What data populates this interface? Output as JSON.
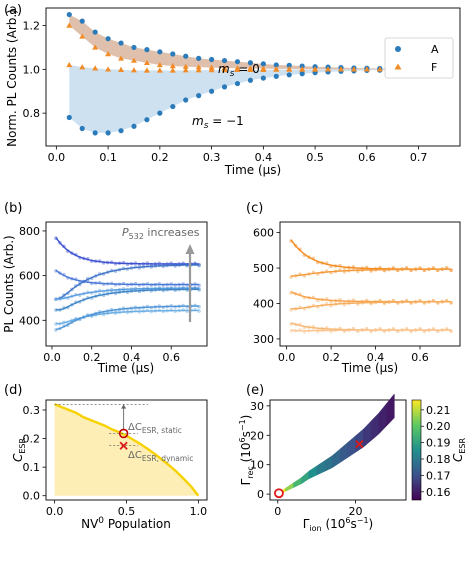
{
  "panels": {
    "a": {
      "label": "(a)",
      "xlabel": "Time (μs)",
      "ylabel": "Norm. PL Counts (Arb.)",
      "xlim": [
        -0.02,
        0.78
      ],
      "ylim": [
        0.65,
        1.28
      ],
      "xticks": [
        "0.0",
        "0.1",
        "0.2",
        "0.3",
        "0.4",
        "0.5",
        "0.6",
        "0.7"
      ],
      "xtick_values": [
        0,
        0.1,
        0.2,
        0.3,
        0.4,
        0.5,
        0.6,
        0.7
      ],
      "yticks": [
        "0.8",
        "1.0",
        "1.2"
      ],
      "ytick_values": [
        0.8,
        1.0,
        1.2
      ],
      "legend": [
        {
          "name": "A",
          "color": "#2b7bba",
          "marker": "circle"
        },
        {
          "name": "F",
          "color": "#f28c28",
          "marker": "triangle"
        }
      ],
      "legend_position": "top-right",
      "annotations": [
        {
          "text": "m",
          "sub": "s",
          "rest": " = 0",
          "x": 0.28,
          "y": 1.08
        },
        {
          "text": "m",
          "sub": "s",
          "rest": " = −1",
          "x": 0.28,
          "y": 0.905
        }
      ],
      "fill_colors": {
        "upper": "#d9b59f",
        "lower": "#c6dcef"
      }
    },
    "b": {
      "label": "(b)",
      "xlabel": "Time (μs)",
      "ylabel": "PL Counts (Arb.)",
      "xlim": [
        -0.03,
        0.78
      ],
      "ylim": [
        285,
        840
      ],
      "xticks": [
        "0.0",
        "0.2",
        "0.4",
        "0.6"
      ],
      "xtick_values": [
        0,
        0.2,
        0.4,
        0.6
      ],
      "yticks": [
        "400",
        "600",
        "800"
      ],
      "ytick_values": [
        400,
        600,
        800
      ],
      "arrow_label": "P",
      "arrow_label_sub": "532",
      "arrow_label_rest": " increases",
      "arrow_color": "#999999"
    },
    "c": {
      "label": "(c)",
      "xlabel": "Time (μs)",
      "xlim": [
        -0.03,
        0.78
      ],
      "ylim": [
        280,
        630
      ],
      "xticks": [
        "0.0",
        "0.2",
        "0.4",
        "0.6"
      ],
      "xtick_values": [
        0,
        0.2,
        0.4,
        0.6
      ],
      "yticks": [
        "300",
        "400",
        "500",
        "600"
      ],
      "ytick_values": [
        300,
        400,
        500,
        600
      ]
    },
    "d": {
      "label": "(d)",
      "xlabel": "NV",
      "xlabel_sup": "0",
      "xlabel_rest": " Population",
      "ylabel": "C",
      "ylabel_sub": "ESR",
      "xlim": [
        -0.06,
        1.06
      ],
      "ylim": [
        -0.015,
        0.335
      ],
      "xticks": [
        "0.0",
        "0.5",
        "1.0"
      ],
      "xtick_values": [
        0,
        0.5,
        1.0
      ],
      "yticks": [
        "0.0",
        "0.1",
        "0.2",
        "0.3"
      ],
      "ytick_values": [
        0,
        0.1,
        0.2,
        0.3
      ],
      "static_label": "ΔC",
      "static_sub": "ESR, static",
      "dynamic_label": "ΔC",
      "dynamic_sub": "ESR, dynamic",
      "circle_point": [
        0.48,
        0.218
      ],
      "cross_point": [
        0.48,
        0.175
      ],
      "fill_color": "#fdeeb5",
      "line_color": "#f7d200"
    },
    "e": {
      "label": "(e)",
      "xlabel": "Γ",
      "xlabel_sub": "ion",
      "xlabel_rest": " (10",
      "xlabel_sup": "6",
      "xlabel_end": "s",
      "xlabel_sup2": "−1",
      "xlabel_close": ")",
      "ylabel": "Γ",
      "ylabel_sub": "rec",
      "ylabel_rest": " (10",
      "ylabel_sup": "6",
      "ylabel_end": "s",
      "ylabel_sup2": "−1",
      "ylabel_close": ")",
      "xlim": [
        -2,
        33
      ],
      "ylim": [
        -2,
        32
      ],
      "xticks": [
        "0",
        "20"
      ],
      "xtick_values": [
        0,
        20
      ],
      "yticks": [
        "0",
        "10",
        "20",
        "30"
      ],
      "ytick_values": [
        0,
        10,
        20,
        30
      ],
      "colorbar": {
        "label": "C",
        "label_sub": "ESR",
        "ticks": [
          "0.16",
          "0.17",
          "0.18",
          "0.19",
          "0.20",
          "0.21"
        ],
        "tick_values": [
          0.16,
          0.17,
          0.18,
          0.19,
          0.2,
          0.21
        ],
        "range": [
          0.155,
          0.216
        ]
      },
      "cross_point": [
        21,
        17
      ],
      "circle_point": [
        0.3,
        0.3
      ]
    }
  },
  "chart_data": [
    {
      "type": "scatter",
      "panel": "a",
      "x": [
        0.025,
        0.05,
        0.075,
        0.1,
        0.125,
        0.15,
        0.175,
        0.2,
        0.225,
        0.25,
        0.275,
        0.3,
        0.325,
        0.35,
        0.375,
        0.4,
        0.425,
        0.45,
        0.475,
        0.5,
        0.525,
        0.55,
        0.575,
        0.6,
        0.625,
        0.65,
        0.675,
        0.7,
        0.725,
        0.75
      ],
      "series": [
        {
          "name": "A",
          "label": "m_s = 0",
          "values": [
            1.25,
            1.22,
            1.17,
            1.14,
            1.12,
            1.1,
            1.09,
            1.08,
            1.07,
            1.06,
            1.05,
            1.045,
            1.04,
            1.035,
            1.03,
            1.025,
            1.02,
            1.018,
            1.015,
            1.012,
            1.01,
            1.008,
            1.006,
            1.005,
            1.004,
            1.003,
            1.002,
            1.001,
            1.0,
            1.0
          ]
        },
        {
          "name": "F",
          "label": "m_s = 0",
          "values": [
            1.2,
            1.15,
            1.1,
            1.07,
            1.05,
            1.04,
            1.03,
            1.02,
            1.015,
            1.012,
            1.01,
            1.008,
            1.006,
            1.005,
            1.004,
            1.003,
            1.002,
            1.002,
            1.001,
            1.001,
            1.0,
            1.0,
            1.0,
            1.0,
            1.0,
            1.0,
            1.0,
            1.0,
            1.0,
            1.0
          ]
        },
        {
          "name": "A",
          "label": "m_s = -1",
          "values": [
            0.78,
            0.73,
            0.71,
            0.71,
            0.72,
            0.74,
            0.77,
            0.8,
            0.83,
            0.86,
            0.88,
            0.9,
            0.92,
            0.935,
            0.95,
            0.96,
            0.968,
            0.975,
            0.98,
            0.985,
            0.988,
            0.991,
            0.993,
            0.995,
            0.996,
            0.997,
            0.998,
            0.999,
            1.0,
            1.0
          ]
        },
        {
          "name": "F",
          "label": "m_s = -1",
          "values": [
            1.02,
            1.01,
            1.005,
            1.0,
            0.998,
            0.996,
            0.995,
            0.995,
            0.995,
            0.996,
            0.996,
            0.997,
            0.997,
            0.998,
            0.998,
            0.998,
            0.999,
            0.999,
            0.999,
            0.999,
            1.0,
            1.0,
            1.0,
            1.0,
            1.0,
            1.0,
            1.0,
            1.0,
            1.0,
            1.0
          ]
        }
      ]
    },
    {
      "type": "line",
      "panel": "b",
      "x": [
        0.02,
        0.04,
        0.06,
        0.08,
        0.1,
        0.12,
        0.14,
        0.16,
        0.18,
        0.2,
        0.22,
        0.24,
        0.26,
        0.28,
        0.3,
        0.32,
        0.34,
        0.36,
        0.38,
        0.4,
        0.42,
        0.44,
        0.46,
        0.48,
        0.5,
        0.52,
        0.54,
        0.56,
        0.58,
        0.6,
        0.62,
        0.64,
        0.66,
        0.68,
        0.7,
        0.72,
        0.74
      ],
      "series": [
        {
          "color": "#3b4fd0",
          "start": 800,
          "end": 652,
          "min": null
        },
        {
          "color": "#4a78d8",
          "start": 640,
          "end": 560,
          "min": null
        },
        {
          "color": "#3f74c9",
          "start": 520,
          "end": 650,
          "min": 430
        },
        {
          "color": "#5b9ee0",
          "start": 510,
          "end": 545,
          "min": 470
        },
        {
          "color": "#3e86c8",
          "start": 470,
          "end": 540,
          "min": 400
        },
        {
          "color": "#6aaee3",
          "start": 400,
          "end": 445,
          "min": 355
        },
        {
          "color": "#4f95d6",
          "start": 370,
          "end": 465,
          "min": 320
        }
      ]
    },
    {
      "type": "line",
      "panel": "c",
      "x": [
        0.02,
        0.04,
        0.06,
        0.08,
        0.1,
        0.12,
        0.14,
        0.16,
        0.18,
        0.2,
        0.22,
        0.24,
        0.26,
        0.28,
        0.3,
        0.32,
        0.34,
        0.36,
        0.38,
        0.4,
        0.42,
        0.44,
        0.46,
        0.48,
        0.5,
        0.52,
        0.54,
        0.56,
        0.58,
        0.6,
        0.62,
        0.64,
        0.66,
        0.68,
        0.7,
        0.72,
        0.74
      ],
      "series": [
        {
          "color": "#f28a1e",
          "start": 600,
          "end": 497,
          "min": null
        },
        {
          "color": "#f49a3a",
          "start": 480,
          "end": 497,
          "min": 470
        },
        {
          "color": "#f5a24a",
          "start": 440,
          "end": 405,
          "min": null
        },
        {
          "color": "#f6ad5e",
          "start": 390,
          "end": 405,
          "min": 375
        },
        {
          "color": "#f7b670",
          "start": 350,
          "end": 325,
          "min": null
        },
        {
          "color": "#f9c592",
          "start": 330,
          "end": 325,
          "min": 320
        }
      ]
    },
    {
      "type": "area",
      "panel": "d",
      "x": [
        0.0,
        0.05,
        0.1,
        0.15,
        0.2,
        0.25,
        0.3,
        0.35,
        0.4,
        0.45,
        0.5,
        0.55,
        0.6,
        0.65,
        0.7,
        0.75,
        0.8,
        0.85,
        0.9,
        0.95,
        1.0
      ],
      "values": [
        0.32,
        0.31,
        0.3,
        0.29,
        0.275,
        0.265,
        0.255,
        0.245,
        0.232,
        0.222,
        0.21,
        0.195,
        0.18,
        0.163,
        0.145,
        0.125,
        0.105,
        0.083,
        0.058,
        0.032,
        0.0
      ]
    },
    {
      "type": "scatter",
      "panel": "e",
      "description_axis": "Gamma_ion vs Gamma_rec, colored by C_ESR",
      "x": [
        0,
        2,
        4,
        6,
        8,
        10,
        12,
        14,
        16,
        18,
        20,
        22,
        24,
        26,
        28,
        30
      ],
      "values": [
        0,
        1.5,
        3,
        4.5,
        6.5,
        8,
        9.5,
        11,
        13,
        15,
        17,
        19,
        21.5,
        24,
        27,
        30
      ],
      "color_values": [
        0.215,
        0.205,
        0.195,
        0.19,
        0.185,
        0.18,
        0.178,
        0.175,
        0.172,
        0.17,
        0.168,
        0.165,
        0.163,
        0.161,
        0.159,
        0.157
      ]
    }
  ]
}
